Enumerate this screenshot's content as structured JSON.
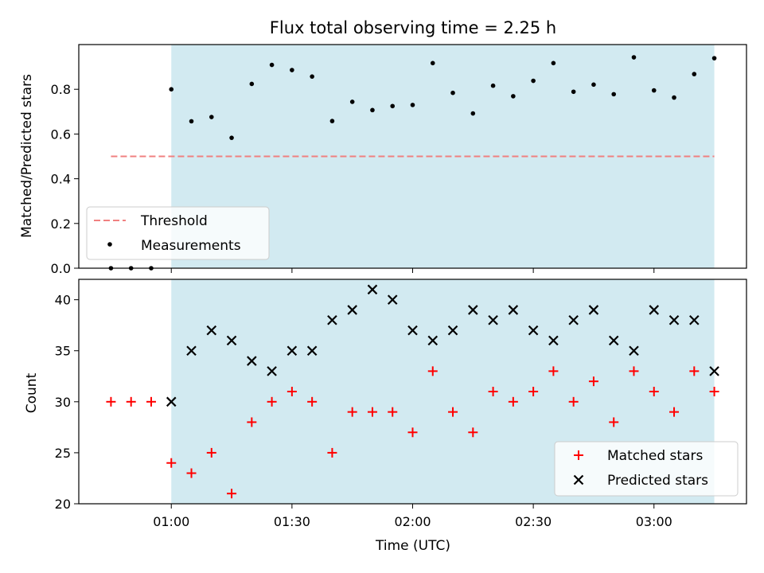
{
  "chart_data": [
    {
      "type": "scatter",
      "title": "Flux total observing time = 2.25 h",
      "xlabel": "",
      "ylabel": "Matched/Predicted stars",
      "ylim": [
        0,
        1.0
      ],
      "yticks": [
        "0.0",
        "0.2",
        "0.4",
        "0.6",
        "0.8"
      ],
      "xlim": [
        "00:37",
        "03:23"
      ],
      "shaded_region": {
        "from": "01:00",
        "to": "03:15",
        "color": "#add8e6"
      },
      "threshold": {
        "name": "Threshold",
        "value": 0.5,
        "from": "00:45",
        "to": "03:15",
        "color": "#f08080"
      },
      "legend": {
        "position": "lower-left",
        "entries": [
          "Threshold",
          "Measurements"
        ]
      },
      "series": [
        {
          "name": "Measurements",
          "color": "#000000",
          "x": [
            "00:45",
            "00:50",
            "00:55",
            "01:00",
            "01:05",
            "01:10",
            "01:15",
            "01:20",
            "01:25",
            "01:30",
            "01:35",
            "01:40",
            "01:45",
            "01:50",
            "01:55",
            "02:00",
            "02:05",
            "02:10",
            "02:15",
            "02:20",
            "02:25",
            "02:30",
            "02:35",
            "02:40",
            "02:45",
            "02:50",
            "02:55",
            "03:00",
            "03:05",
            "03:10",
            "03:15"
          ],
          "y": [
            0.0,
            0.0,
            0.0,
            0.8,
            0.657,
            0.676,
            0.583,
            0.824,
            0.909,
            0.886,
            0.857,
            0.658,
            0.744,
            0.707,
            0.725,
            0.73,
            0.917,
            0.784,
            0.692,
            0.816,
            0.769,
            0.838,
            0.917,
            0.789,
            0.821,
            0.778,
            0.943,
            0.795,
            0.763,
            0.868,
            0.939
          ]
        }
      ]
    },
    {
      "type": "scatter",
      "title": "",
      "xlabel": "Time (UTC)",
      "ylabel": "Count",
      "ylim": [
        20,
        42
      ],
      "yticks": [
        "20",
        "25",
        "30",
        "35",
        "40"
      ],
      "xticks": [
        "01:00",
        "01:30",
        "02:00",
        "02:30",
        "03:00"
      ],
      "xlim": [
        "00:37",
        "03:23"
      ],
      "shaded_region": {
        "from": "01:00",
        "to": "03:15",
        "color": "#add8e6"
      },
      "legend": {
        "position": "lower-right",
        "entries": [
          "Matched stars",
          "Predicted stars"
        ]
      },
      "series": [
        {
          "name": "Matched stars",
          "marker": "+",
          "color": "#ff0000",
          "x": [
            "00:45",
            "00:50",
            "00:55",
            "01:00",
            "01:05",
            "01:10",
            "01:15",
            "01:20",
            "01:25",
            "01:30",
            "01:35",
            "01:40",
            "01:45",
            "01:50",
            "01:55",
            "02:00",
            "02:05",
            "02:10",
            "02:15",
            "02:20",
            "02:25",
            "02:30",
            "02:35",
            "02:40",
            "02:45",
            "02:50",
            "02:55",
            "03:00",
            "03:05",
            "03:10",
            "03:15"
          ],
          "y": [
            30,
            30,
            30,
            24,
            23,
            25,
            21,
            28,
            30,
            31,
            30,
            25,
            29,
            29,
            29,
            27,
            33,
            29,
            27,
            31,
            30,
            31,
            33,
            30,
            32,
            28,
            33,
            31,
            29,
            33,
            31
          ]
        },
        {
          "name": "Predicted stars",
          "marker": "x",
          "color": "#000000",
          "x": [
            "01:00",
            "01:05",
            "01:10",
            "01:15",
            "01:20",
            "01:25",
            "01:30",
            "01:35",
            "01:40",
            "01:45",
            "01:50",
            "01:55",
            "02:00",
            "02:05",
            "02:10",
            "02:15",
            "02:20",
            "02:25",
            "02:30",
            "02:35",
            "02:40",
            "02:45",
            "02:50",
            "02:55",
            "03:00",
            "03:05",
            "03:10",
            "03:15"
          ],
          "y": [
            30,
            35,
            37,
            36,
            34,
            33,
            35,
            35,
            38,
            39,
            41,
            40,
            37,
            36,
            37,
            39,
            38,
            39,
            37,
            36,
            38,
            39,
            36,
            35,
            39,
            38,
            38,
            33
          ]
        }
      ]
    }
  ]
}
